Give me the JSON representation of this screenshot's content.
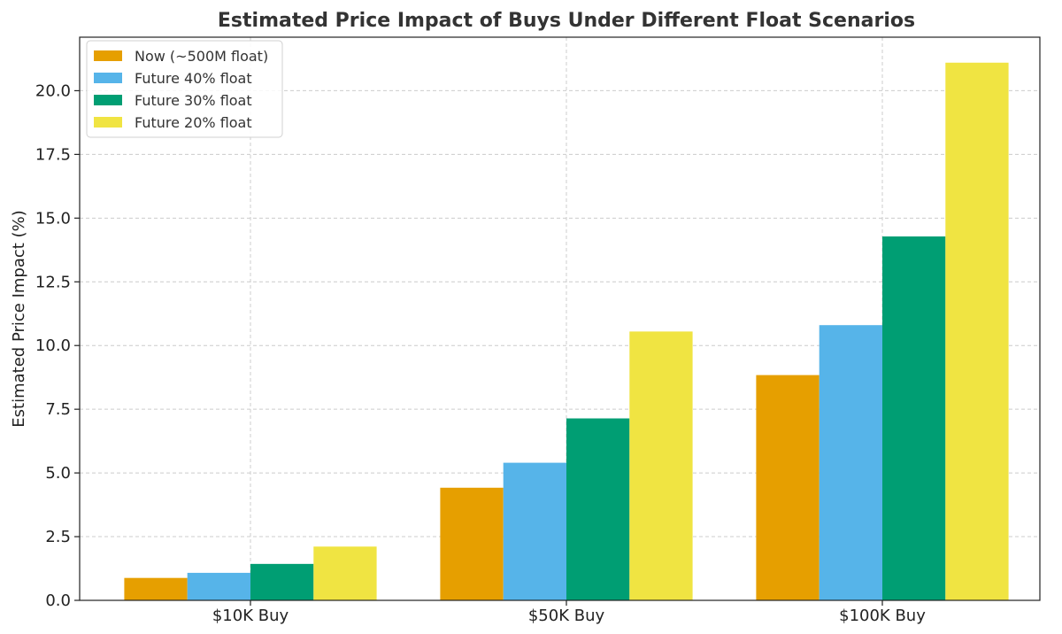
{
  "chart_data": {
    "type": "bar",
    "title": "Estimated Price Impact of Buys Under Different Float Scenarios",
    "xlabel": "",
    "ylabel": "Estimated Price Impact (%)",
    "categories": [
      "$10K Buy",
      "$50K Buy",
      "$100K Buy"
    ],
    "series": [
      {
        "name": "Now (~500M float)",
        "color": "#E69F00",
        "values": [
          0.88,
          4.42,
          8.84
        ]
      },
      {
        "name": "Future 40% float",
        "color": "#56B4E9",
        "values": [
          1.08,
          5.4,
          10.8
        ]
      },
      {
        "name": "Future 30% float",
        "color": "#009E73",
        "values": [
          1.43,
          7.14,
          14.28
        ]
      },
      {
        "name": "Future 20% float",
        "color": "#F0E442",
        "values": [
          2.11,
          10.55,
          21.1
        ]
      }
    ],
    "ylim": [
      0,
      22.1
    ],
    "yticks": [
      0.0,
      2.5,
      5.0,
      7.5,
      10.0,
      12.5,
      15.0,
      17.5,
      20.0
    ],
    "ytick_labels": [
      "0.0",
      "2.5",
      "5.0",
      "7.5",
      "10.0",
      "12.5",
      "15.0",
      "17.5",
      "20.0"
    ],
    "grid": true,
    "legend_position": "top-left"
  }
}
